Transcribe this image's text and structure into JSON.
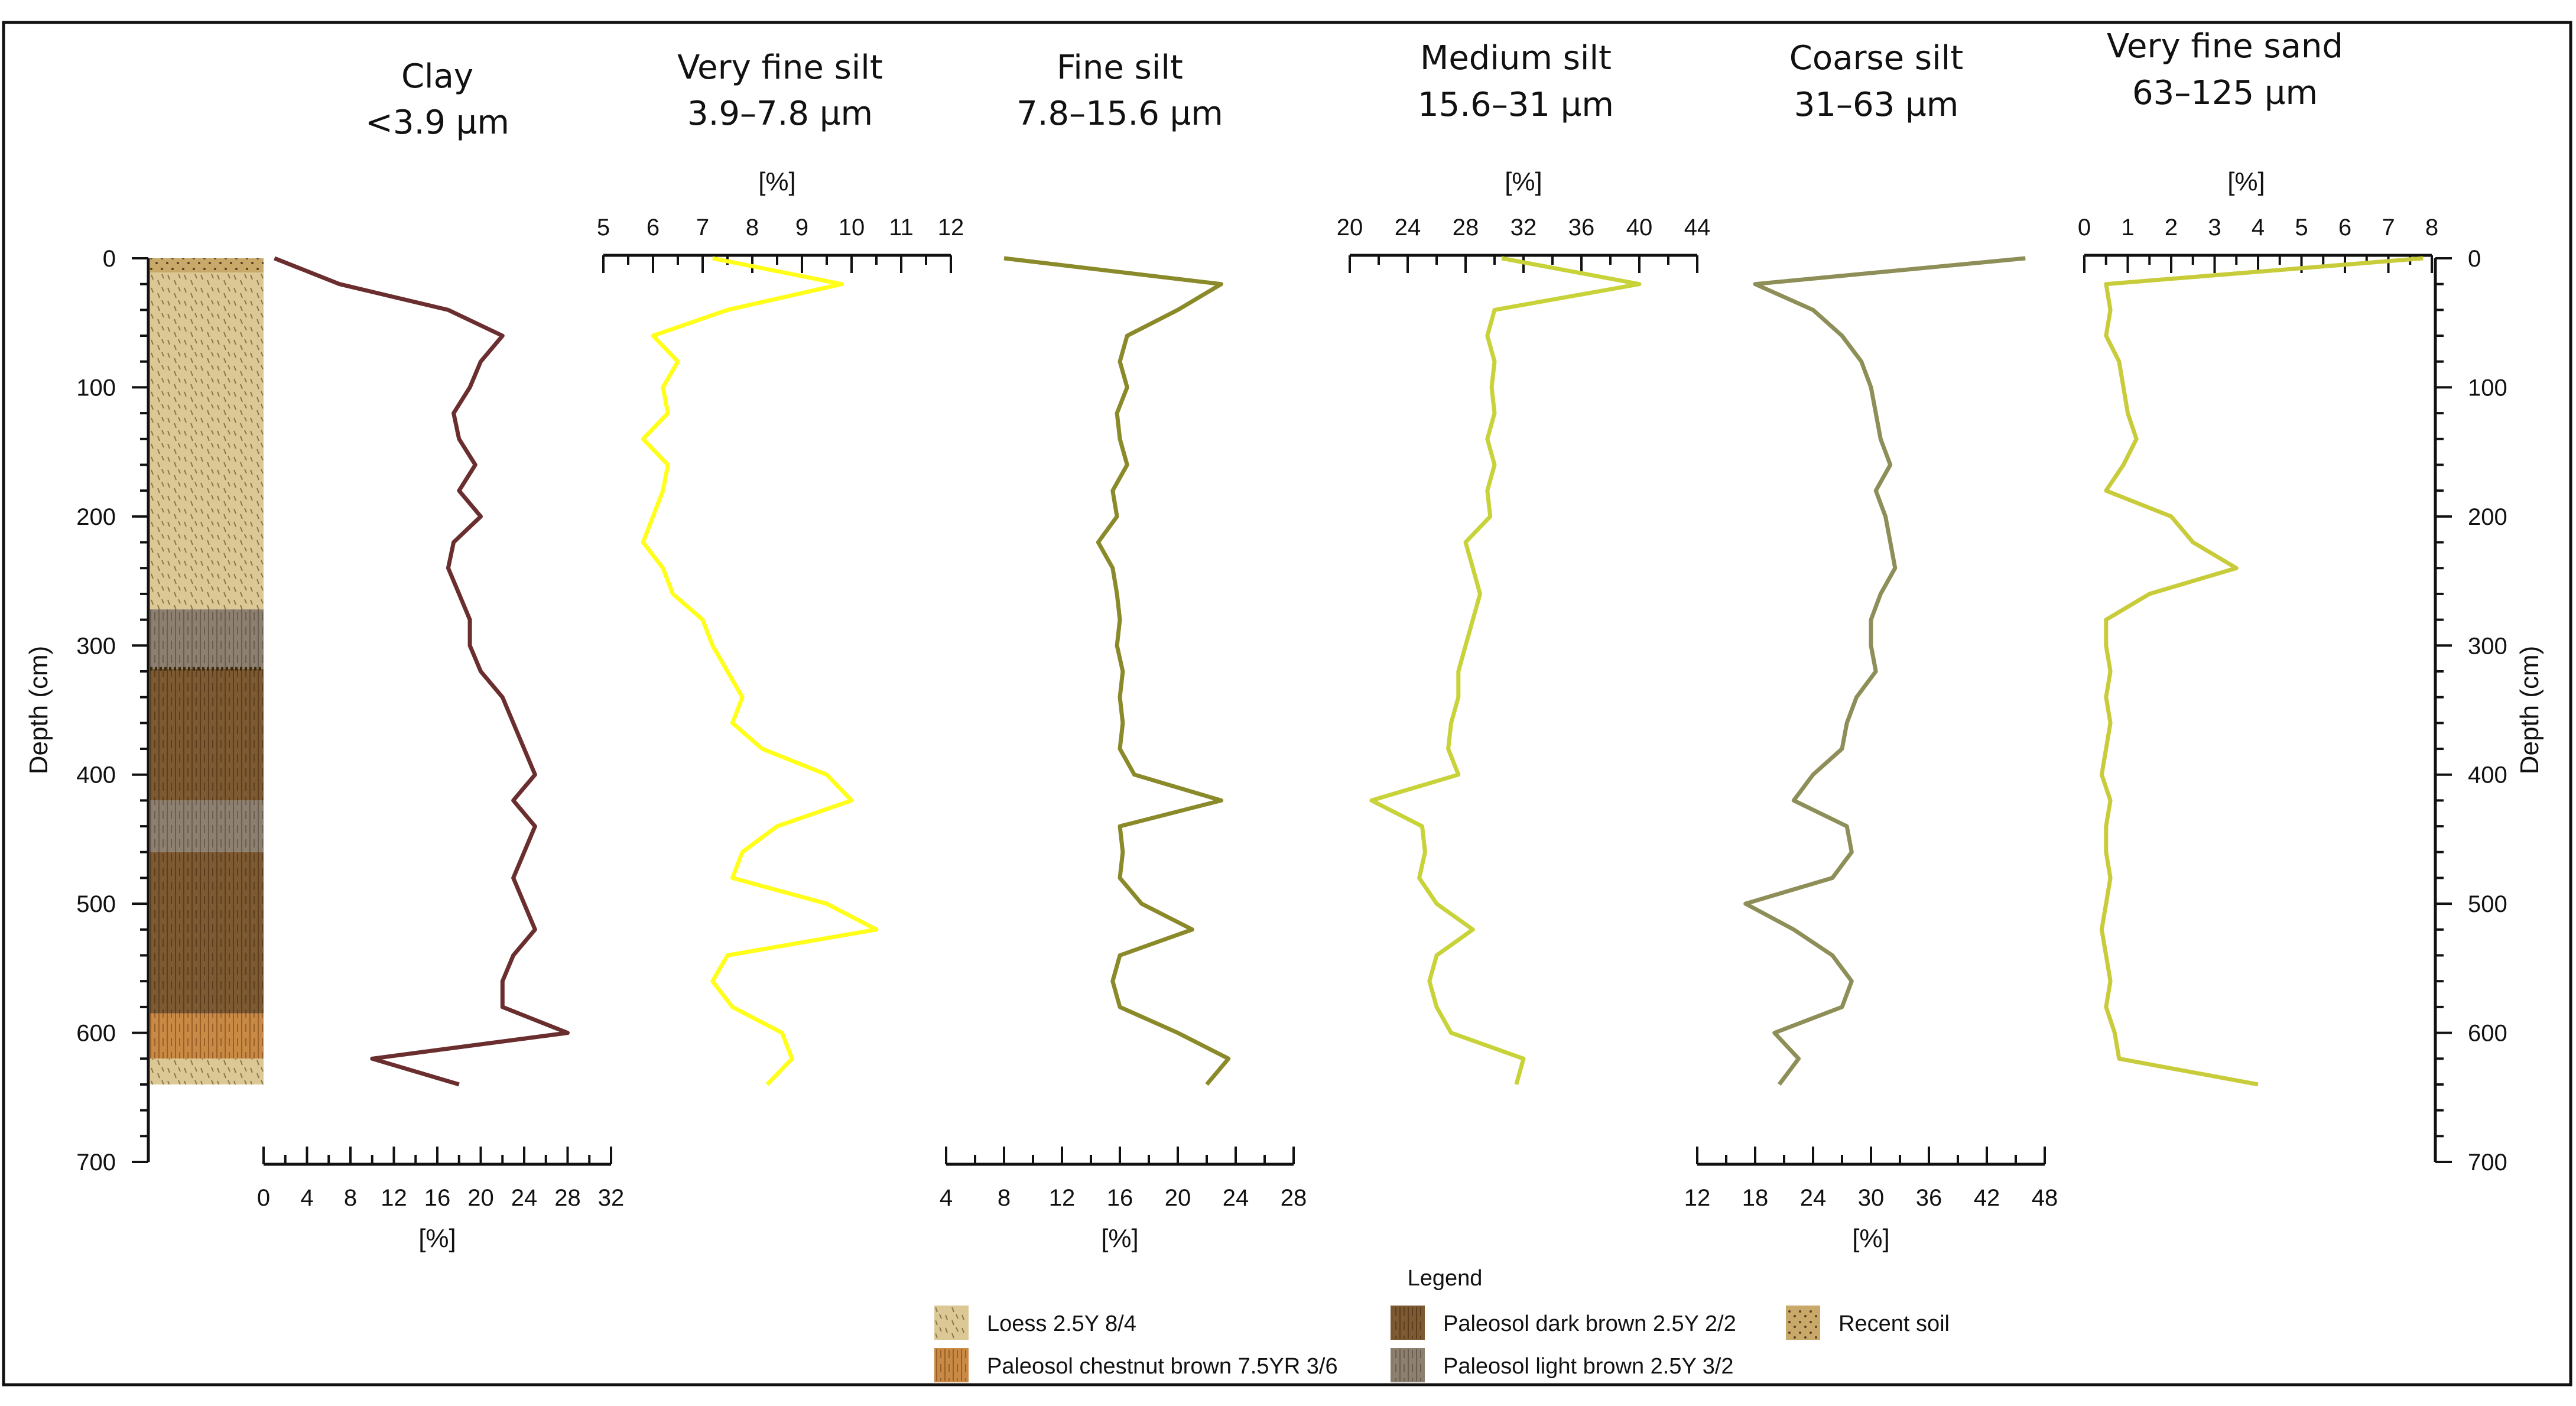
{
  "chart_data": {
    "type": "line",
    "depth_axis": {
      "label": "Depth (cm)",
      "range": [
        0,
        700
      ],
      "ticks": [
        0,
        100,
        200,
        300,
        400,
        500,
        600,
        700
      ]
    },
    "depth_samples": [
      0,
      20,
      40,
      60,
      80,
      100,
      120,
      140,
      160,
      180,
      200,
      220,
      240,
      260,
      280,
      300,
      320,
      340,
      360,
      380,
      400,
      420,
      440,
      460,
      480,
      500,
      520,
      540,
      560,
      580,
      600,
      620,
      640
    ],
    "unit_label": "[%]",
    "series": [
      {
        "name": "Clay",
        "size": "<3.9 µm",
        "color": "#6b2e2e",
        "axis_position": "bottom",
        "range": [
          0,
          32
        ],
        "ticks": [
          0,
          4,
          8,
          12,
          16,
          20,
          24,
          28,
          32
        ],
        "values": [
          1,
          7,
          17,
          22,
          20,
          19,
          17.5,
          18,
          19.5,
          18,
          20,
          17.5,
          17,
          18,
          19,
          19,
          20,
          22,
          23,
          24,
          25,
          23,
          25,
          24,
          23,
          24,
          25,
          23,
          22,
          22,
          28,
          10,
          18
        ]
      },
      {
        "name": "Very fine silt",
        "size": "3.9–7.8 µm",
        "color": "#ffff1a",
        "axis_position": "top",
        "range": [
          5,
          12
        ],
        "ticks": [
          5,
          6,
          7,
          8,
          9,
          10,
          11,
          12
        ],
        "values": [
          7.2,
          9.8,
          7.5,
          6,
          6.5,
          6.2,
          6.3,
          5.8,
          6.3,
          6.2,
          6,
          5.8,
          6.2,
          6.4,
          7,
          7.2,
          7.5,
          7.8,
          7.6,
          8.2,
          9.5,
          10,
          8.5,
          7.8,
          7.6,
          9.5,
          10.5,
          7.5,
          7.2,
          7.6,
          8.6,
          8.8,
          8.3
        ]
      },
      {
        "name": "Fine silt",
        "size": "7.8–15.6 µm",
        "color": "#8a8a2a",
        "axis_position": "bottom",
        "range": [
          4,
          28
        ],
        "ticks": [
          4,
          8,
          12,
          16,
          20,
          24,
          28
        ],
        "values": [
          8,
          23,
          20,
          16.5,
          16,
          16.5,
          15.8,
          16,
          16.5,
          15.5,
          15.8,
          14.5,
          15.5,
          15.8,
          16,
          15.8,
          16.2,
          16,
          16.2,
          16,
          17,
          23,
          16,
          16.2,
          16,
          17.5,
          21,
          16,
          15.5,
          16,
          20,
          23.5,
          22
        ]
      },
      {
        "name": "Medium silt",
        "size": "15.6–31 µm",
        "color": "#c8d33a",
        "axis_position": "top",
        "range": [
          20,
          44
        ],
        "ticks": [
          20,
          24,
          28,
          32,
          36,
          40,
          44
        ],
        "values": [
          30.5,
          40,
          30,
          29.5,
          30,
          29.8,
          30,
          29.5,
          30,
          29.5,
          29.7,
          28,
          28.5,
          29,
          28.5,
          28,
          27.5,
          27.5,
          27,
          26.8,
          27.5,
          21.5,
          25,
          25.2,
          24.8,
          26,
          28.5,
          26,
          25.5,
          26,
          27,
          32,
          31.5
        ]
      },
      {
        "name": "Coarse silt",
        "size": "31–63 µm",
        "color": "#8e8e58",
        "axis_position": "bottom",
        "range": [
          12,
          48
        ],
        "ticks": [
          12,
          18,
          24,
          30,
          36,
          42,
          48
        ],
        "values": [
          46,
          18,
          24,
          27,
          29,
          30,
          30.5,
          31,
          32,
          30.5,
          31.5,
          32,
          32.5,
          31,
          30,
          30,
          30.5,
          28.5,
          27.5,
          27,
          24,
          22,
          27.5,
          28,
          26,
          17,
          22,
          26,
          28,
          27,
          20,
          22.5,
          20.5
        ]
      },
      {
        "name": "Very fine sand",
        "size": "63–125 µm",
        "color": "#c9cc3a",
        "axis_position": "top",
        "range": [
          0,
          8
        ],
        "ticks": [
          0,
          1,
          2,
          3,
          4,
          5,
          6,
          7,
          8
        ],
        "values": [
          7.8,
          0.5,
          0.6,
          0.5,
          0.8,
          0.9,
          1,
          1.2,
          0.9,
          0.5,
          2,
          2.5,
          3.5,
          1.5,
          0.5,
          0.5,
          0.6,
          0.5,
          0.6,
          0.5,
          0.4,
          0.6,
          0.5,
          0.5,
          0.6,
          0.5,
          0.4,
          0.5,
          0.6,
          0.5,
          0.7,
          0.8,
          4
        ]
      }
    ],
    "lithology": [
      {
        "from": 0,
        "to": 0,
        "unit": "Recent soil"
      },
      {
        "from": 0,
        "to": 272,
        "unit": "Loess 2.5Y 8/4"
      },
      {
        "from": 272,
        "to": 318,
        "unit": "Paleosol light brown 2.5Y 3/2"
      },
      {
        "from": 318,
        "to": 420,
        "unit": "Paleosol dark brown 2.5Y 2/2"
      },
      {
        "from": 420,
        "to": 460,
        "unit": "Paleosol light brown 2.5Y 3/2"
      },
      {
        "from": 460,
        "to": 585,
        "unit": "Paleosol dark brown 2.5Y 2/2"
      },
      {
        "from": 585,
        "to": 620,
        "unit": "Paleosol chestnut brown 7.5YR 3/6"
      },
      {
        "from": 620,
        "to": 640,
        "unit": "Loess 2.5Y 8/4"
      }
    ],
    "legend": {
      "title": "Legend",
      "items": [
        {
          "label": "Loess 2.5Y 8/4",
          "color": "#dcc894"
        },
        {
          "label": "Paleosol dark brown 2.5Y 2/2",
          "color": "#7e5a32"
        },
        {
          "label": "Recent soil",
          "color": "#c9a96a"
        },
        {
          "label": "Paleosol chestnut brown 7.5YR 3/6",
          "color": "#c98a45"
        },
        {
          "label": "Paleosol light brown 2.5Y 3/2",
          "color": "#8e8070"
        }
      ]
    }
  }
}
